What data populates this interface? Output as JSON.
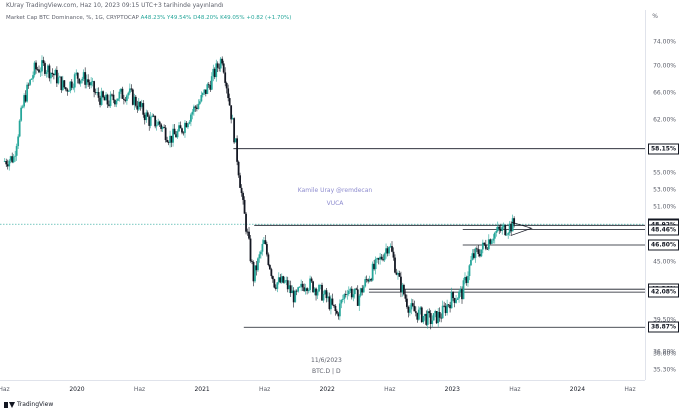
{
  "header": {
    "publish_line": "KUray TradingView.com, Haz 10, 2023 09:15 UTC+3 tarihinde yayınlandı"
  },
  "symbol_info": {
    "name": "Market Cap BTC Dominance, %, 1G, CRYPTOCAP",
    "ohlc": "A48.23% Y49.54% D48.20% K49.05% +0.82 (+1.70%)"
  },
  "annotations": {
    "author_watermark": "Kamile Uray @remdecan",
    "brand_watermark": "VUCA",
    "date_note": "11/6/2023",
    "symbol_note": "BTC.D | D"
  },
  "price_scale": {
    "unit": "%",
    "ticks": [
      "74.00%",
      "70.00%",
      "66.00%",
      "62.00%",
      "55.00%",
      "53.00%",
      "51.00%",
      "45.00%",
      "39.50%",
      "36.80%",
      "36.60%",
      "35.30%"
    ],
    "labels": [
      "58.15%",
      "49.05%",
      "48.92%",
      "48.46%",
      "46.80%",
      "42.36%",
      "42.08%",
      "38.87%"
    ]
  },
  "time_scale": {
    "ticks": [
      "Haz",
      "2020",
      "Haz",
      "2021",
      "Haz",
      "2022",
      "Haz",
      "2023",
      "Haz",
      "2024",
      "Haz"
    ],
    "bold_ticks": [
      "2020",
      "2021",
      "2022",
      "2023",
      "2024"
    ]
  },
  "footer": {
    "brand": "TradingView"
  },
  "colors": {
    "up": "#26a69a",
    "down": "#131722",
    "level_line": "#131722",
    "current_price_line": "#26a69a",
    "watermark": "#8e8ccf"
  },
  "chart_data": {
    "type": "candlestick",
    "title": "Market Cap BTC Dominance, %, 1G, CRYPTOCAP",
    "ylabel": "%",
    "y_scale": "log",
    "ylim": [
      35.3,
      76
    ],
    "horizontal_levels": [
      58.15,
      48.92,
      48.46,
      46.8,
      42.36,
      42.08,
      38.87
    ],
    "current_price": 49.05,
    "series": [
      {
        "x": [
          "2019-05",
          "2019-06",
          "2019-07",
          "2019-08",
          "2019-09",
          "2019-10",
          "2019-11",
          "2019-12",
          "2020-01",
          "2020-02",
          "2020-03",
          "2020-04",
          "2020-05",
          "2020-06",
          "2020-07",
          "2020-08",
          "2020-09",
          "2020-10",
          "2020-11",
          "2020-12",
          "2021-01",
          "2021-02",
          "2021-03",
          "2021-04",
          "2021-05",
          "2021-06",
          "2021-07",
          "2021-08",
          "2021-09",
          "2021-10",
          "2021-11",
          "2021-12",
          "2022-01",
          "2022-02",
          "2022-03",
          "2022-04",
          "2022-05",
          "2022-06",
          "2022-07",
          "2022-08",
          "2022-09",
          "2022-10",
          "2022-11",
          "2022-12",
          "2023-01",
          "2023-02",
          "2023-03",
          "2023-04",
          "2023-05",
          "2023-06"
        ],
        "values": [
          56.5,
          57,
          65,
          69.5,
          70,
          68.5,
          66.5,
          68.5,
          68,
          65.5,
          64.5,
          65.5,
          66,
          64,
          62,
          61.5,
          59.5,
          60.5,
          63,
          65,
          68,
          71.5,
          61.5,
          51,
          43.5,
          47,
          43,
          43,
          41.5,
          43,
          42.5,
          41.5,
          40,
          42.5,
          41.5,
          43.5,
          45,
          47,
          43,
          40.5,
          40,
          39.5,
          40,
          41.5,
          42,
          45.5,
          46.5,
          48,
          48.5,
          49.05
        ]
      }
    ]
  }
}
